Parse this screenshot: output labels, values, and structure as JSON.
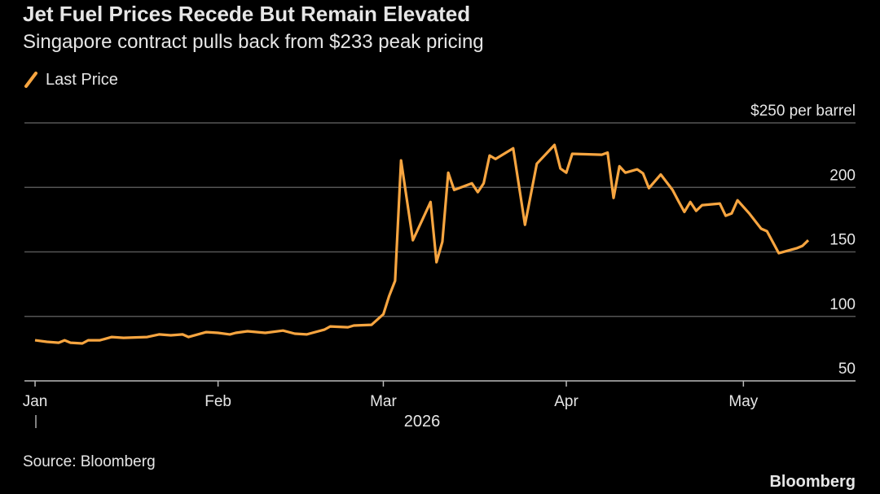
{
  "chart_data": {
    "type": "line",
    "title": "Jet Fuel Prices Recede But Remain Elevated",
    "subtitle": "Singapore contract pulls back from $233 peak pricing",
    "xlabel": "2026",
    "source": "Source: Bloomberg",
    "logo": "Bloomberg",
    "xlim": [
      -1.8,
      139
    ],
    "xticks": [
      {
        "value": 0,
        "label": "Jan"
      },
      {
        "value": 31,
        "label": "Feb"
      },
      {
        "value": 59,
        "label": "Mar"
      },
      {
        "value": 90,
        "label": "Apr"
      },
      {
        "value": 120,
        "label": "May"
      }
    ],
    "ylim": [
      50,
      250
    ],
    "yticks": [
      {
        "value": 250,
        "label": "$250 per barrel"
      },
      200,
      150,
      100,
      50
    ],
    "grid": true,
    "x": [
      0,
      2,
      4,
      5,
      6,
      8,
      9,
      11,
      13,
      15,
      19,
      21,
      23,
      25,
      26,
      29,
      31,
      33,
      34,
      36,
      39,
      42,
      44,
      46,
      49,
      50,
      53,
      54,
      57,
      59,
      60,
      61,
      62,
      64,
      67,
      68,
      69,
      70,
      71,
      74,
      75,
      76,
      77,
      78,
      81,
      83,
      85,
      88,
      89,
      90,
      91,
      96,
      97,
      98,
      99,
      100,
      102,
      103,
      104,
      106,
      108,
      109,
      110,
      111,
      112,
      113,
      116,
      117,
      118,
      119,
      121,
      123,
      124,
      126,
      129,
      130,
      131
    ],
    "series": [
      {
        "name": "Last Price",
        "color": "#f7a540",
        "values": [
          81.5,
          80.3,
          79.6,
          81.5,
          79.6,
          79,
          81.5,
          81.5,
          84,
          83.4,
          84,
          86,
          85.3,
          86,
          84,
          87.8,
          87.2,
          86,
          87.2,
          88.5,
          87.2,
          89,
          86.6,
          86,
          89.7,
          92.2,
          91.6,
          92.9,
          93.5,
          101.7,
          116,
          127.6,
          220.9,
          159,
          188.7,
          142,
          157.8,
          211.4,
          198,
          203.2,
          196.3,
          203.2,
          224.7,
          222,
          230.3,
          171,
          218.3,
          232.9,
          214.6,
          211.4,
          226,
          225.3,
          227,
          191.8,
          216.4,
          211.4,
          214,
          210.8,
          199.4,
          210,
          198,
          189.3,
          181,
          188.7,
          181.8,
          186.2,
          187.5,
          178,
          179.8,
          190,
          179.8,
          168,
          166,
          149,
          152.8,
          154.7,
          159
        ]
      }
    ]
  }
}
